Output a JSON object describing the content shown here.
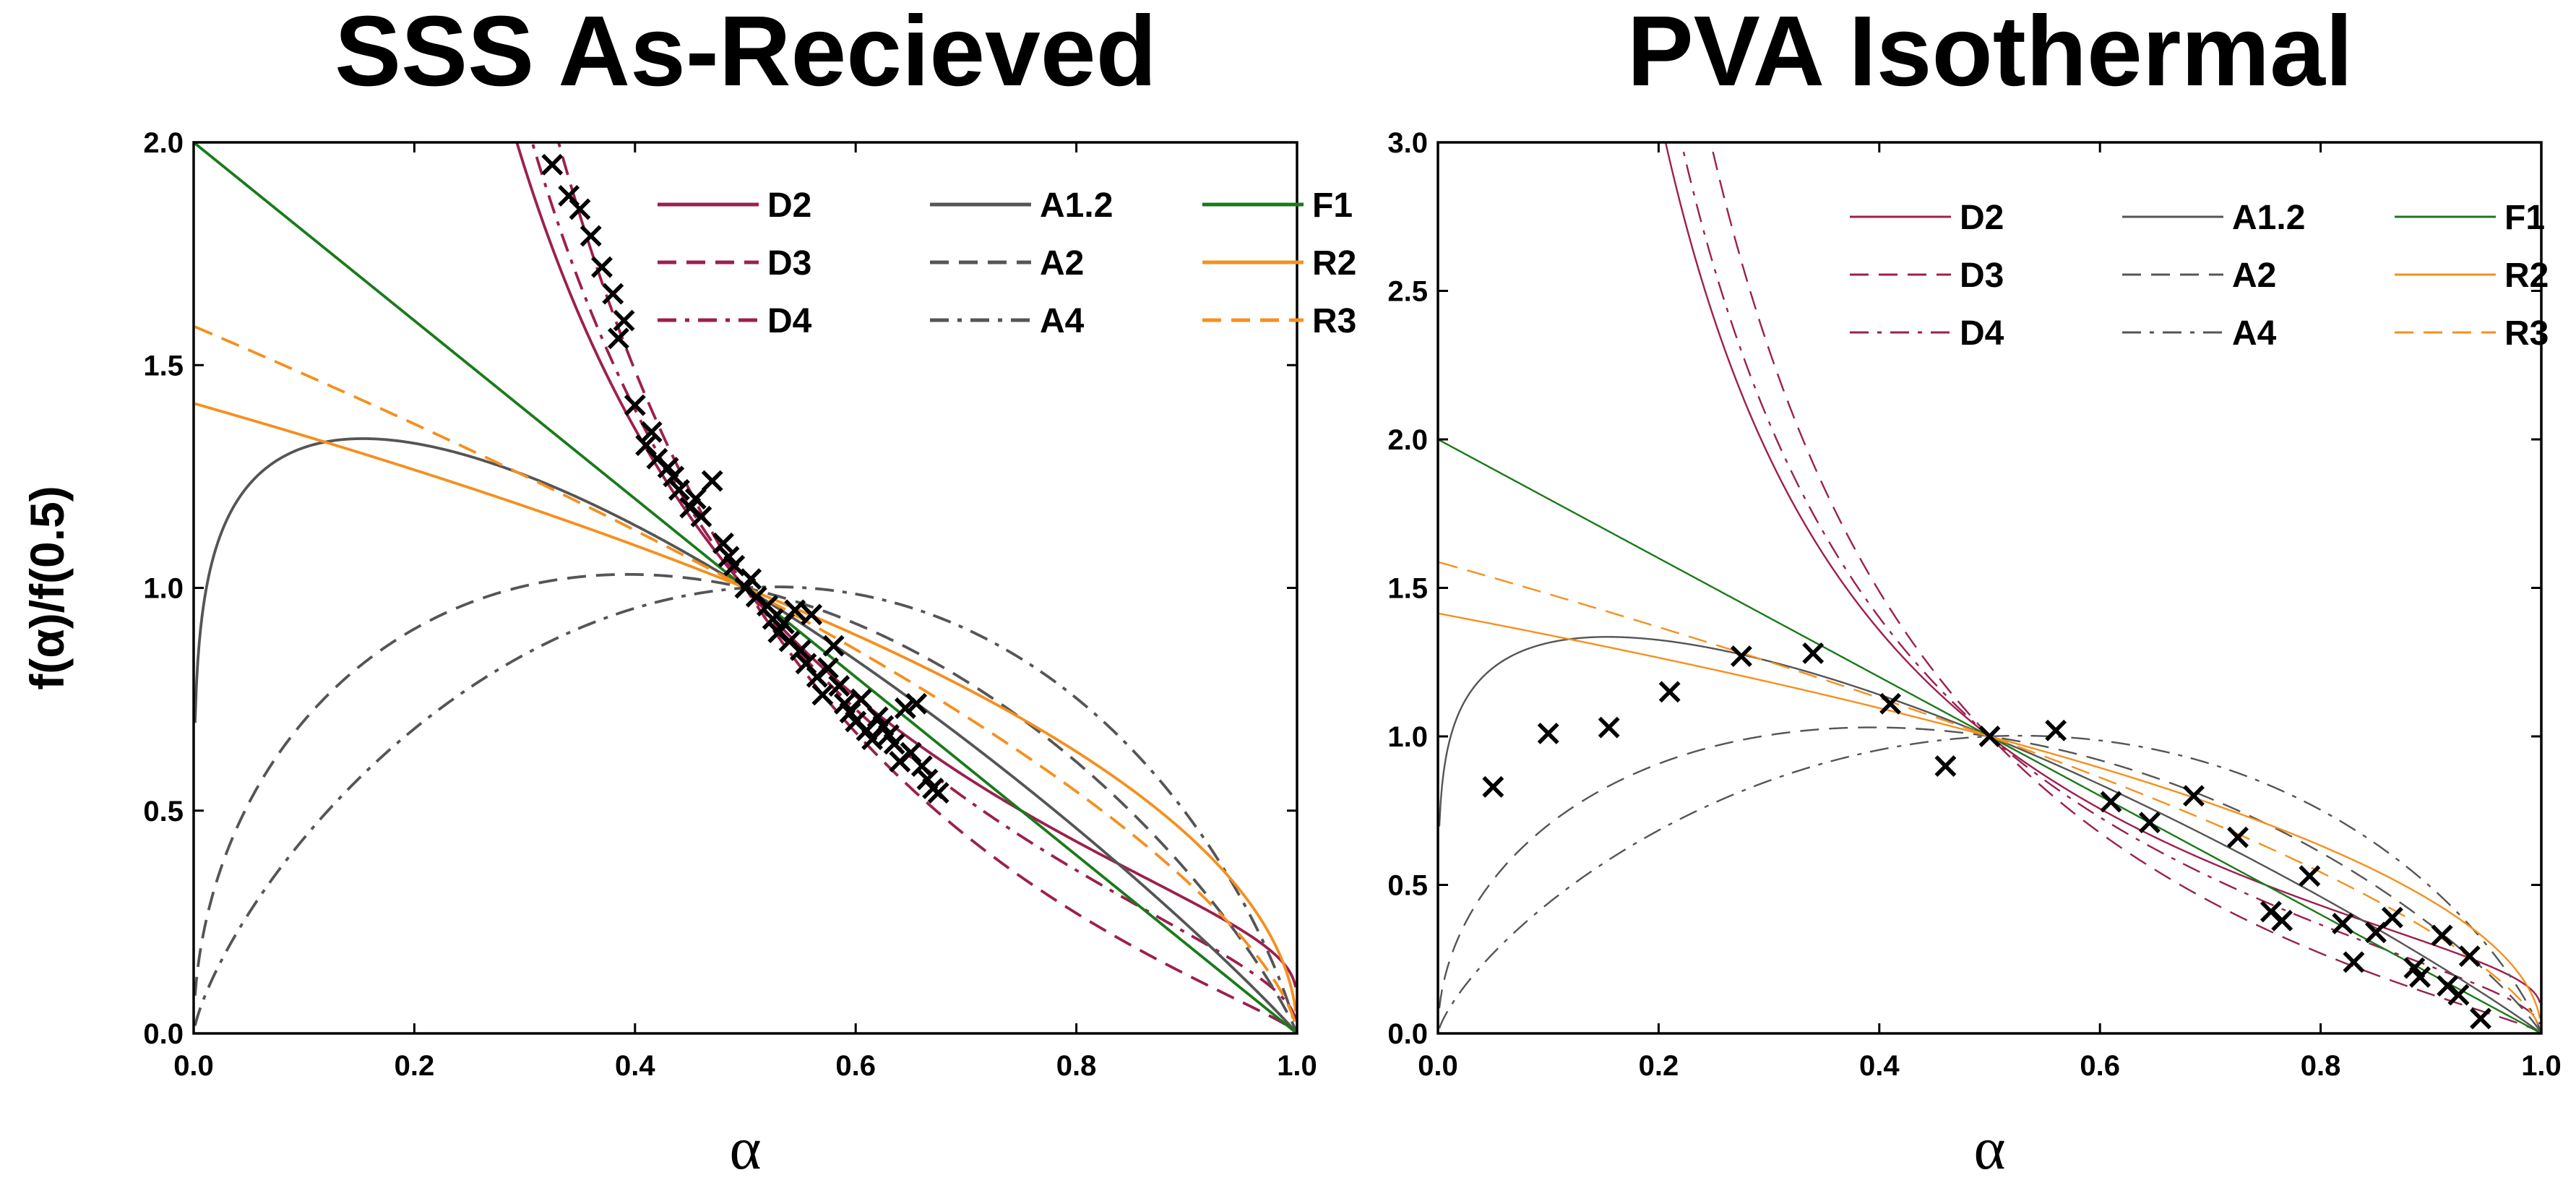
{
  "chart_data": [
    {
      "type": "line",
      "title": "SSS As-Recieved",
      "xlabel": "α",
      "ylabel": "f(α)/f(0.5)",
      "xlim": [
        0,
        1
      ],
      "ylim": [
        0,
        2
      ],
      "xticks": [
        "0.0",
        "0.2",
        "0.4",
        "0.6",
        "0.8",
        "1.0"
      ],
      "yticks": [
        "0.0",
        "0.5",
        "1.0",
        "1.5",
        "2.0"
      ],
      "legend_position": "top-right",
      "series": [
        {
          "name": "D2",
          "model": "D2",
          "color": "#9c1f4f",
          "dash": "solid"
        },
        {
          "name": "D3",
          "model": "D3",
          "color": "#9c1f4f",
          "dash": "dash"
        },
        {
          "name": "D4",
          "model": "D4",
          "color": "#9c1f4f",
          "dash": "dashdot"
        },
        {
          "name": "A1.2",
          "model": "A1.2",
          "color": "#555555",
          "dash": "solid"
        },
        {
          "name": "A2",
          "model": "A2",
          "color": "#555555",
          "dash": "dash"
        },
        {
          "name": "A4",
          "model": "A4",
          "color": "#555555",
          "dash": "dashdot"
        },
        {
          "name": "F1",
          "model": "F1",
          "color": "#1a7a1a",
          "dash": "solid"
        },
        {
          "name": "R2",
          "model": "R2",
          "color": "#f5901e",
          "dash": "solid"
        },
        {
          "name": "R3",
          "model": "R3",
          "color": "#f5901e",
          "dash": "dash"
        }
      ],
      "points": {
        "marker": "x",
        "x": [
          0.325,
          0.34,
          0.35,
          0.36,
          0.37,
          0.38,
          0.385,
          0.39,
          0.4,
          0.41,
          0.415,
          0.42,
          0.43,
          0.435,
          0.44,
          0.45,
          0.455,
          0.46,
          0.47,
          0.48,
          0.485,
          0.49,
          0.5,
          0.505,
          0.51,
          0.52,
          0.525,
          0.53,
          0.535,
          0.54,
          0.545,
          0.55,
          0.555,
          0.56,
          0.565,
          0.57,
          0.575,
          0.58,
          0.585,
          0.59,
          0.595,
          0.6,
          0.605,
          0.61,
          0.615,
          0.62,
          0.625,
          0.63,
          0.635,
          0.64,
          0.645,
          0.65,
          0.655,
          0.66,
          0.665,
          0.67,
          0.675
        ],
        "y": [
          1.95,
          1.88,
          1.85,
          1.79,
          1.72,
          1.66,
          1.56,
          1.6,
          1.41,
          1.32,
          1.35,
          1.29,
          1.27,
          1.25,
          1.22,
          1.18,
          1.2,
          1.16,
          1.24,
          1.1,
          1.07,
          1.05,
          1.0,
          1.02,
          0.98,
          0.96,
          0.93,
          0.9,
          0.92,
          0.88,
          0.95,
          0.86,
          0.83,
          0.94,
          0.8,
          0.76,
          0.82,
          0.87,
          0.78,
          0.74,
          0.72,
          0.7,
          0.75,
          0.68,
          0.66,
          0.71,
          0.69,
          0.67,
          0.65,
          0.61,
          0.73,
          0.63,
          0.74,
          0.6,
          0.57,
          0.55,
          0.54
        ]
      }
    },
    {
      "type": "line",
      "title": "PVA Isothermal",
      "xlabel": "α",
      "ylabel": "",
      "xlim": [
        0,
        1
      ],
      "ylim": [
        0,
        3
      ],
      "xticks": [
        "0.0",
        "0.2",
        "0.4",
        "0.6",
        "0.8",
        "1.0"
      ],
      "yticks": [
        "0.0",
        "0.5",
        "1.0",
        "1.5",
        "2.0",
        "2.5",
        "3.0"
      ],
      "legend_position": "top-right",
      "series": [
        {
          "name": "D2",
          "model": "D2",
          "color": "#9c1f4f",
          "dash": "solid"
        },
        {
          "name": "D3",
          "model": "D3",
          "color": "#9c1f4f",
          "dash": "dash"
        },
        {
          "name": "D4",
          "model": "D4",
          "color": "#9c1f4f",
          "dash": "dashdot"
        },
        {
          "name": "A1.2",
          "model": "A1.2",
          "color": "#555555",
          "dash": "solid"
        },
        {
          "name": "A2",
          "model": "A2",
          "color": "#555555",
          "dash": "dash"
        },
        {
          "name": "A4",
          "model": "A4",
          "color": "#555555",
          "dash": "dashdot"
        },
        {
          "name": "F1",
          "model": "F1",
          "color": "#1a7a1a",
          "dash": "solid"
        },
        {
          "name": "R2",
          "model": "R2",
          "color": "#f5901e",
          "dash": "solid"
        },
        {
          "name": "R3",
          "model": "R3",
          "color": "#f5901e",
          "dash": "dash"
        }
      ],
      "points": {
        "marker": "x",
        "x": [
          0.05,
          0.1,
          0.155,
          0.21,
          0.275,
          0.34,
          0.41,
          0.46,
          0.5,
          0.56,
          0.61,
          0.645,
          0.685,
          0.725,
          0.755,
          0.765,
          0.79,
          0.82,
          0.83,
          0.85,
          0.865,
          0.885,
          0.89,
          0.91,
          0.915,
          0.925,
          0.935,
          0.945
        ],
        "y": [
          0.83,
          1.01,
          1.03,
          1.15,
          1.27,
          1.28,
          1.11,
          0.9,
          1.0,
          1.02,
          0.78,
          0.71,
          0.8,
          0.66,
          0.41,
          0.38,
          0.53,
          0.37,
          0.24,
          0.34,
          0.39,
          0.22,
          0.19,
          0.33,
          0.16,
          0.13,
          0.26,
          0.05
        ]
      }
    }
  ]
}
